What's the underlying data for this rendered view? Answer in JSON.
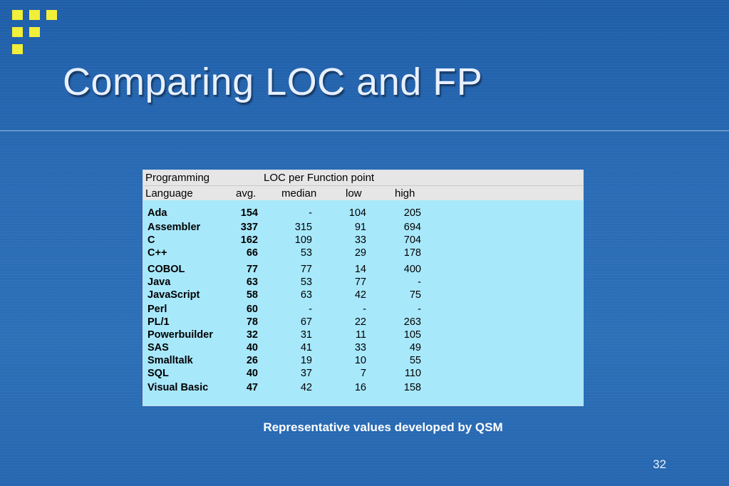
{
  "slide": {
    "title": "Comparing LOC and FP",
    "caption": "Representative values developed by QSM",
    "page_number": "32"
  },
  "table": {
    "header": {
      "row1_col1": "Programming",
      "row1_col2": "LOC per Function point",
      "language": "Language",
      "avg": "avg.",
      "median": "median",
      "low": "low",
      "high": "high"
    },
    "rows": [
      {
        "lang": "Ada",
        "avg": "154",
        "median": "-",
        "low": "104",
        "high": "205"
      },
      {
        "lang": "Assembler",
        "avg": "337",
        "median": "315",
        "low": "91",
        "high": "694"
      },
      {
        "lang": "C",
        "avg": "162",
        "median": "109",
        "low": "33",
        "high": "704"
      },
      {
        "lang": "C++",
        "avg": "66",
        "median": "53",
        "low": "29",
        "high": "178"
      },
      {
        "lang": "COBOL",
        "avg": "77",
        "median": "77",
        "low": "14",
        "high": "400"
      },
      {
        "lang": "Java",
        "avg": "63",
        "median": "53",
        "low": "77",
        "high": "-"
      },
      {
        "lang": "JavaScript",
        "avg": "58",
        "median": "63",
        "low": "42",
        "high": "75"
      },
      {
        "lang": "Perl",
        "avg": "60",
        "median": "-",
        "low": "-",
        "high": "-"
      },
      {
        "lang": "PL/1",
        "avg": "78",
        "median": "67",
        "low": "22",
        "high": "263"
      },
      {
        "lang": "Powerbuilder",
        "avg": "32",
        "median": "31",
        "low": "11",
        "high": "105"
      },
      {
        "lang": "SAS",
        "avg": "40",
        "median": "41",
        "low": "33",
        "high": "49"
      },
      {
        "lang": "Smalltalk",
        "avg": "26",
        "median": "19",
        "low": "10",
        "high": "55"
      },
      {
        "lang": "SQL",
        "avg": "40",
        "median": "37",
        "low": "7",
        "high": "110"
      },
      {
        "lang": "Visual Basic",
        "avg": "47",
        "median": "42",
        "low": "16",
        "high": "158"
      }
    ]
  },
  "colors": {
    "background": "#2a6cb6",
    "logo": "#f2ef3a",
    "table_body": "#a8e8fb",
    "table_header": "#e6e6e6"
  }
}
